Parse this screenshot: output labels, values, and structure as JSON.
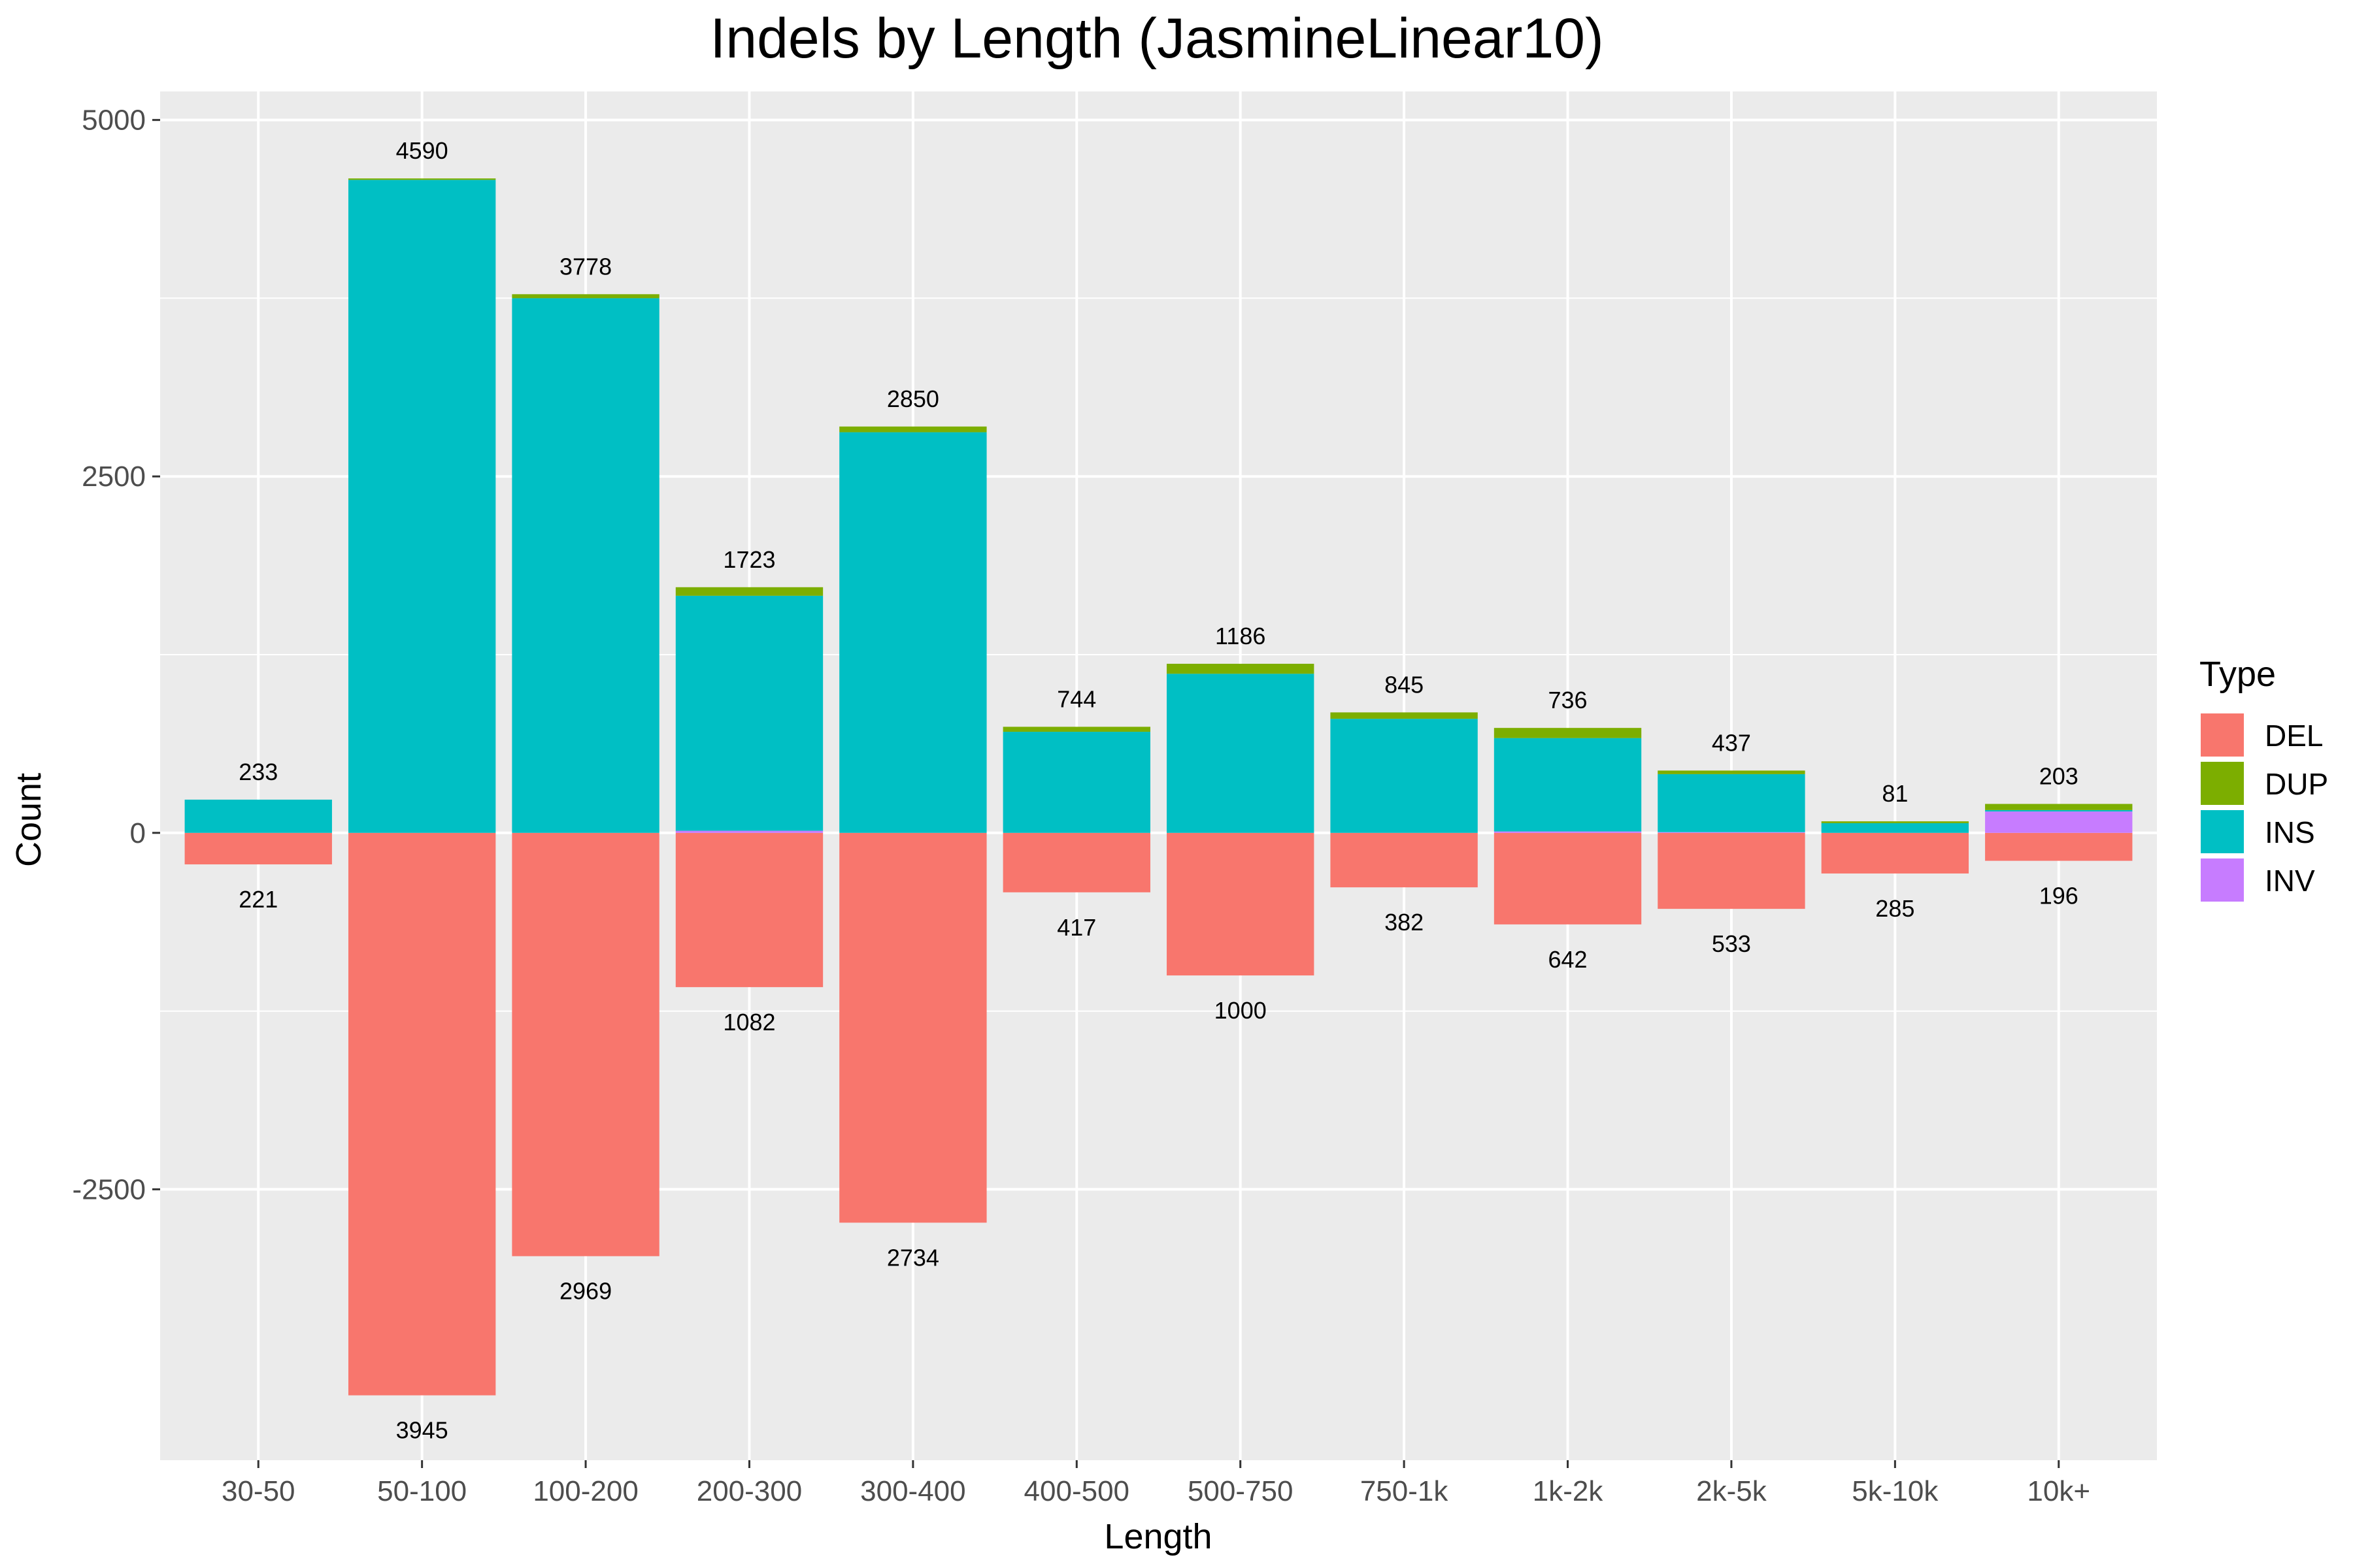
{
  "chart_data": {
    "type": "bar",
    "title": "Indels by Length (JasmineLinear10)",
    "xlabel": "Length",
    "ylabel": "Count",
    "ylim": [
      -4400,
      5200
    ],
    "yticks": [
      -2500,
      0,
      2500,
      5000
    ],
    "grid": true,
    "legend_position": "right",
    "legend_title": "Type",
    "categories": [
      "30-50",
      "50-100",
      "100-200",
      "200-300",
      "300-400",
      "400-500",
      "500-750",
      "750-1k",
      "1k-2k",
      "2k-5k",
      "5k-10k",
      "10k+"
    ],
    "series": [
      {
        "name": "DEL",
        "color": "#F8766D",
        "values": [
          -221,
          -3945,
          -2969,
          -1082,
          -2734,
          -417,
          -1000,
          -382,
          -642,
          -533,
          -285,
          -196
        ]
      },
      {
        "name": "INV",
        "color": "#C77CFF",
        "values": [
          0,
          0,
          0,
          15,
          0,
          0,
          0,
          0,
          10,
          5,
          0,
          150
        ]
      },
      {
        "name": "INS",
        "color": "#00BFC4",
        "values": [
          233,
          4580,
          3750,
          1648,
          2810,
          709,
          1116,
          800,
          655,
          407,
          68,
          10
        ]
      },
      {
        "name": "DUP",
        "color": "#7CAE00",
        "values": [
          0,
          10,
          28,
          60,
          40,
          35,
          70,
          45,
          71,
          25,
          13,
          43
        ]
      }
    ],
    "positive_totals": [
      233,
      4590,
      3778,
      1723,
      2850,
      744,
      1186,
      845,
      736,
      437,
      81,
      203
    ],
    "negative_totals": [
      221,
      3945,
      2969,
      1082,
      2734,
      417,
      1000,
      382,
      642,
      533,
      285,
      196
    ]
  },
  "legend": {
    "title": "Type",
    "items": [
      {
        "label": "DEL",
        "color": "#F8766D"
      },
      {
        "label": "DUP",
        "color": "#7CAE00"
      },
      {
        "label": "INS",
        "color": "#00BFC4"
      },
      {
        "label": "INV",
        "color": "#C77CFF"
      }
    ]
  },
  "colors": {
    "panel_background": "#EBEBEB",
    "grid_major": "#FFFFFF"
  }
}
